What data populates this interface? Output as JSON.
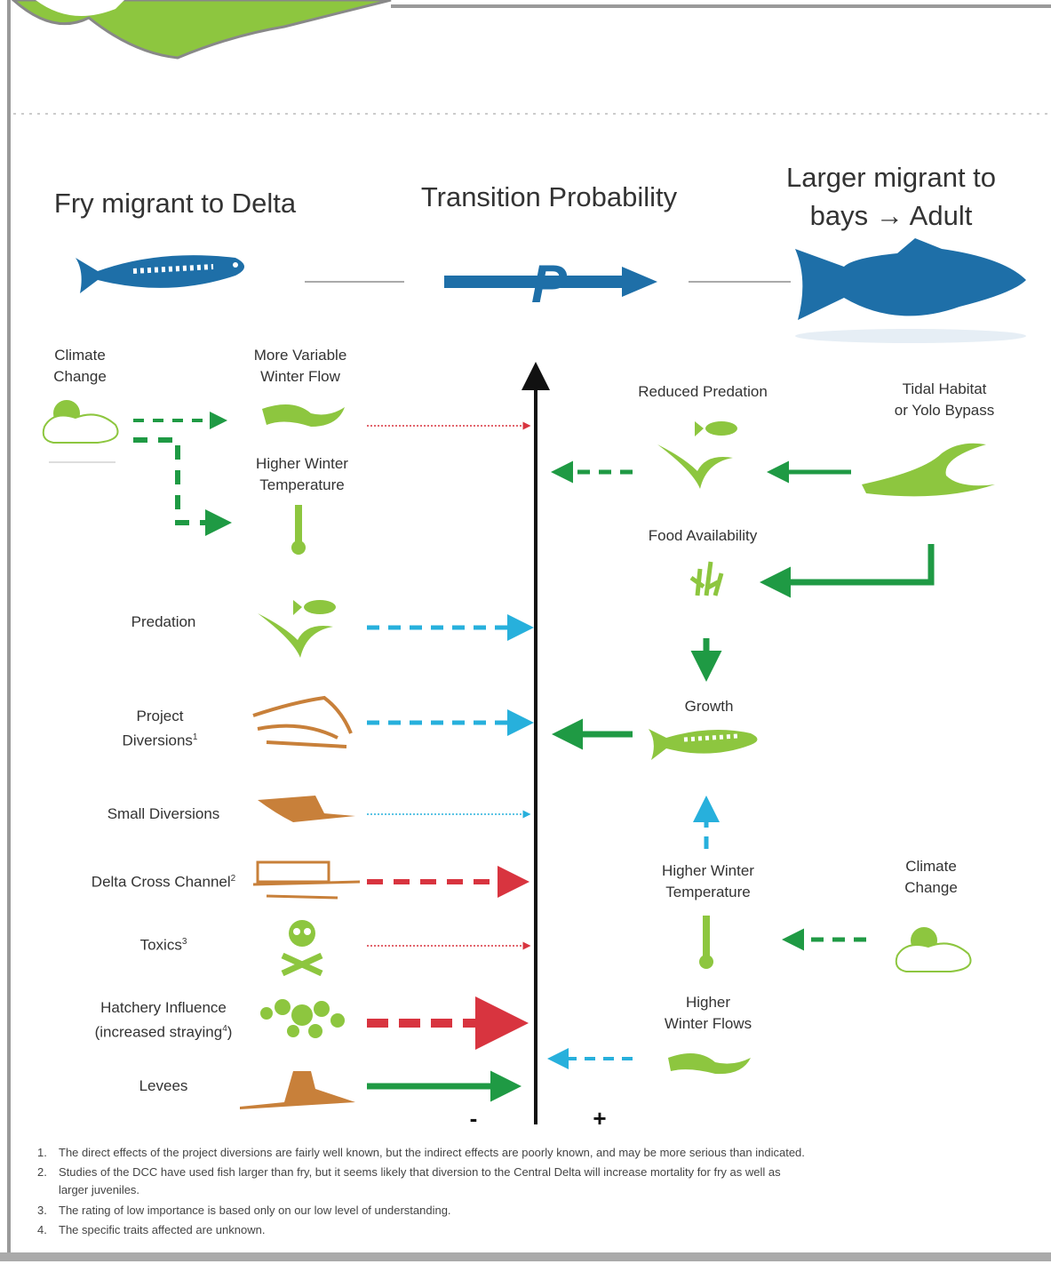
{
  "header": {
    "left_title": "Fry migrant to Delta",
    "center_title": "Transition Probability",
    "right_title": [
      "Larger migrant to",
      "bays → Adult"
    ],
    "p_symbol": "P"
  },
  "left_nodes": {
    "climate_change": [
      "Climate",
      "Change"
    ],
    "winter_flow": [
      "More Variable",
      "Winter Flow"
    ],
    "winter_temperature": [
      "Higher Winter",
      "Temperature"
    ]
  },
  "left_factors": [
    {
      "label": [
        "Predation"
      ]
    },
    {
      "label": [
        "Project",
        "Diversions"
      ],
      "sup": "1"
    },
    {
      "label": [
        "Small Diversions"
      ]
    },
    {
      "label": [
        "Delta Cross Channel"
      ],
      "sup": "2"
    },
    {
      "label": [
        "Toxics"
      ],
      "sup": "3"
    },
    {
      "label": [
        "Hatchery Influence",
        "(increased straying"
      ],
      "sup": "4",
      "close": ")"
    },
    {
      "label": [
        "Levees"
      ]
    }
  ],
  "right_nodes": {
    "reduced_predation": [
      "Reduced Predation"
    ],
    "tidal_habitat": [
      "Tidal Habitat",
      "or Yolo Bypass"
    ],
    "food_availability": [
      "Food Availability"
    ],
    "growth": [
      "Growth"
    ],
    "winter_temperature": [
      "Higher Winter",
      "Temperature"
    ],
    "climate_change": [
      "Climate",
      "Change"
    ],
    "winter_flows": [
      "Higher",
      "Winter Flows"
    ]
  },
  "axis": {
    "minus": "-",
    "plus": "+"
  },
  "footnotes": [
    {
      "number": "1.",
      "text": [
        "The direct effects of the project diversions are fairly well known, but the indirect effects are poorly known, and may be more serious than indicated."
      ]
    },
    {
      "number": "2.",
      "text": [
        "Studies of the DCC have used fish larger than fry, but it seems likely that diversion to the Central Delta will increase mortality for fry as well as",
        "larger juveniles."
      ]
    },
    {
      "number": "3.",
      "text": [
        "The rating of low importance is based only on our low level of understanding."
      ]
    },
    {
      "number": "4.",
      "text": [
        "The specific traits affected are unknown."
      ]
    }
  ]
}
